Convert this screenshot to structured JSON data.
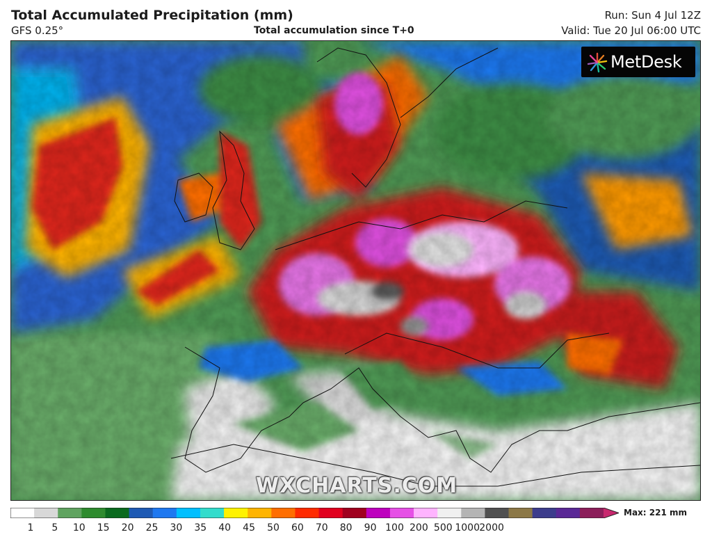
{
  "header": {
    "title": "Total Accumulated Precipitation (mm)",
    "model": "GFS 0.25°",
    "subtitle": "Total accumulation since T+0",
    "run": "Run: Sun 4 Jul 12Z",
    "valid": "Valid: Tue 20 Jul 06:00 UTC"
  },
  "brand": {
    "name": "MetDesk",
    "icon": "starburst-logo-icon"
  },
  "watermark": "WXCHARTS.COM",
  "legend": {
    "max_label": "Max: 221 mm",
    "ticks": [
      "1",
      "5",
      "10",
      "15",
      "20",
      "25",
      "30",
      "35",
      "40",
      "45",
      "50",
      "60",
      "70",
      "80",
      "90",
      "100",
      "200",
      "500",
      "1000",
      "2000"
    ],
    "colors": [
      "#ffffff",
      "#d8d8d8",
      "#5fa35f",
      "#2e8b2e",
      "#0a6a1e",
      "#1e5ab4",
      "#1e78f0",
      "#00bfff",
      "#32dccc",
      "#fff200",
      "#ffb400",
      "#ff6e00",
      "#ff2a00",
      "#e1001e",
      "#a0001e",
      "#be00be",
      "#e650e6",
      "#ffb4ff",
      "#f0f0f0",
      "#b4b4b4",
      "#505050",
      "#8c7846",
      "#3c3c8c",
      "#5a2896",
      "#8c1e5a",
      "#c8286e"
    ]
  },
  "map": {
    "description_colors": {
      "ocean_low": "#5a9a5a",
      "ocean_blue": "#2a6ad0",
      "heavy": "#d8201e",
      "extreme": "#e070e0",
      "dry": "#f5f5f5"
    }
  }
}
